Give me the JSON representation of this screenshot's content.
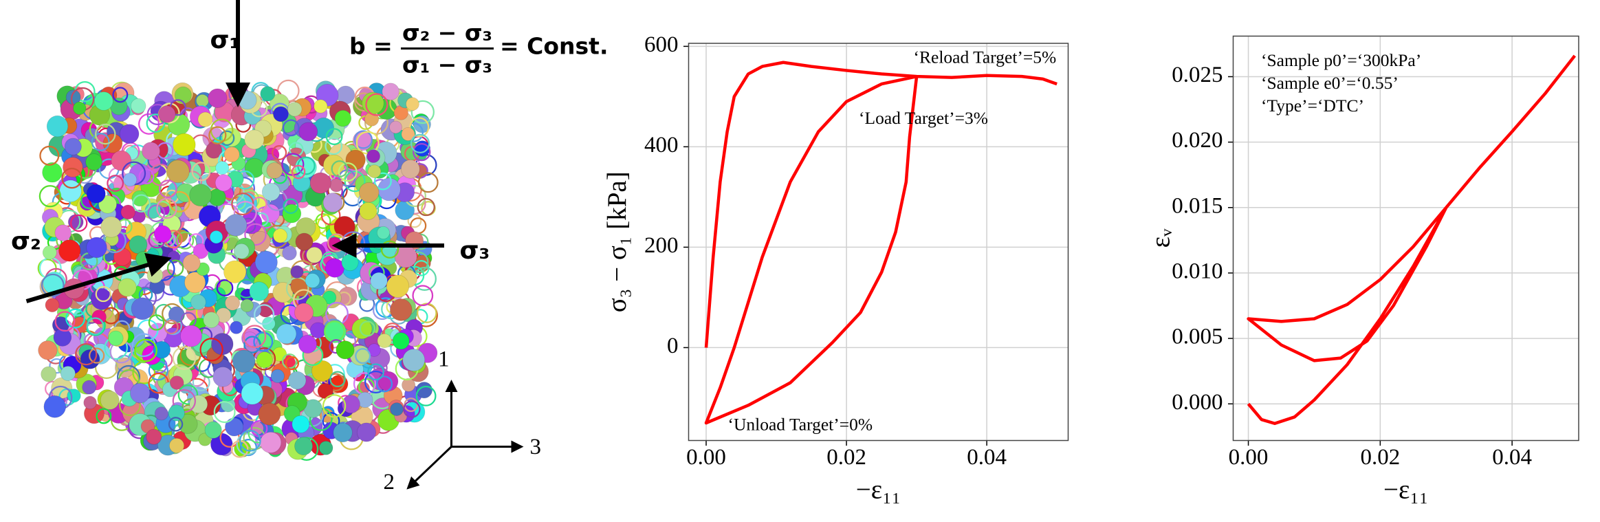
{
  "diagram": {
    "stress_labels": [
      "σ₁",
      "σ₂",
      "σ₃"
    ],
    "axis_labels": [
      "1",
      "2",
      "3"
    ],
    "formula": {
      "lhs": "b =",
      "numerator": "σ₂ − σ₃",
      "denominator": "σ₁ − σ₃",
      "rhs": "= Const."
    }
  },
  "chart_data": [
    {
      "type": "line",
      "x_label": "−ε₁₁",
      "y_label": "σ₃ − σ₁ [kPa]",
      "x": [
        0,
        0.001,
        0.002,
        0.003,
        0.004,
        0.006,
        0.008,
        0.011,
        0.015,
        0.02,
        0.025,
        0.03,
        0.0295,
        0.029,
        0.0285,
        0.027,
        0.025,
        0.022,
        0.018,
        0.012,
        0.006,
        0,
        0.002,
        0.004,
        0.008,
        0.012,
        0.016,
        0.02,
        0.025,
        0.03,
        0.035,
        0.04,
        0.045,
        0.048,
        0.05
      ],
      "series": [
        {
          "color": "#ff0000",
          "values": [
            0,
            180,
            330,
            430,
            500,
            545,
            560,
            568,
            560,
            552,
            545,
            540,
            480,
            420,
            330,
            230,
            150,
            70,
            10,
            -70,
            -115,
            -150,
            -80,
            0,
            180,
            330,
            430,
            490,
            525,
            540,
            538,
            542,
            540,
            535,
            525
          ]
        }
      ],
      "xlim": [
        -0.0025,
        0.0516
      ],
      "ylim": [
        -185,
        606
      ],
      "xticks": [
        {
          "value": 0,
          "label": "0.00"
        },
        {
          "value": 0.02,
          "label": "0.02"
        },
        {
          "value": 0.04,
          "label": "0.04"
        }
      ],
      "yticks": [
        0,
        200,
        400,
        600
      ],
      "grid": true,
      "annotations": [
        "‘Reload Target’=5%",
        "‘Load Target’=3%",
        "‘Unload Target’=0%"
      ]
    },
    {
      "type": "line",
      "x_label": "−ε₁₁",
      "y_label": "εᵥ",
      "x": [
        0,
        0.002,
        0.004,
        0.007,
        0.01,
        0.015,
        0.02,
        0.025,
        0.03,
        0.027,
        0.022,
        0.018,
        0.014,
        0.01,
        0.005,
        0,
        0.005,
        0.01,
        0.015,
        0.02,
        0.025,
        0.03,
        0.035,
        0.04,
        0.045,
        0.0495
      ],
      "series": [
        {
          "color": "#ff0000",
          "values": [
            0,
            -0.0012,
            -0.0015,
            -0.001,
            0.0003,
            0.003,
            0.0065,
            0.0105,
            0.015,
            0.012,
            0.0075,
            0.0048,
            0.0035,
            0.0033,
            0.0045,
            0.0065,
            0.0063,
            0.0065,
            0.0076,
            0.0095,
            0.012,
            0.015,
            0.018,
            0.0208,
            0.0237,
            0.0266
          ]
        }
      ],
      "xlim": [
        -0.0023,
        0.0501
      ],
      "ylim": [
        -0.0028,
        0.0281
      ],
      "xticks": [
        {
          "value": 0,
          "label": "0.00"
        },
        {
          "value": 0.02,
          "label": "0.02"
        },
        {
          "value": 0.04,
          "label": "0.04"
        }
      ],
      "yticks": [
        {
          "value": 0,
          "label": "0.000"
        },
        {
          "value": 0.005,
          "label": "0.005"
        },
        {
          "value": 0.01,
          "label": "0.010"
        },
        {
          "value": 0.015,
          "label": "0.015"
        },
        {
          "value": 0.02,
          "label": "0.020"
        },
        {
          "value": 0.025,
          "label": "0.025"
        }
      ],
      "grid": true,
      "annotations": [
        "‘Sample p0’=‘300kPa’",
        "‘Sample e0’=‘0.55’",
        "‘Type’=‘DTC’"
      ]
    }
  ]
}
